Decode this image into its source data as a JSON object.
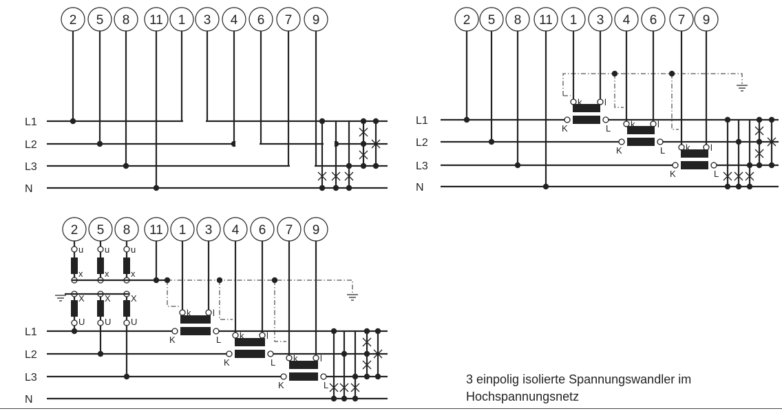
{
  "diagrams": [
    {
      "id": "top-left",
      "terminals": [
        "2",
        "5",
        "8",
        "11",
        "1",
        "3",
        "4",
        "6",
        "7",
        "9"
      ],
      "lines": [
        "L1",
        "L2",
        "L3",
        "N"
      ]
    },
    {
      "id": "top-right",
      "terminals": [
        "2",
        "5",
        "8",
        "11",
        "1",
        "3",
        "4",
        "6",
        "7",
        "9"
      ],
      "lines": [
        "L1",
        "L2",
        "L3",
        "N"
      ],
      "ct_labels": {
        "primary_in": "K",
        "primary_out": "L",
        "secondary_in": "k",
        "secondary_out": "l"
      }
    },
    {
      "id": "bottom-left",
      "terminals": [
        "2",
        "5",
        "8",
        "11",
        "1",
        "3",
        "4",
        "6",
        "7",
        "9"
      ],
      "lines": [
        "L1",
        "L2",
        "L3",
        "N"
      ],
      "ct_labels": {
        "primary_in": "K",
        "primary_out": "L",
        "secondary_in": "k",
        "secondary_out": "l"
      },
      "vt_labels": {
        "sec_top": "u",
        "sec_bottom": "x",
        "pri_top": "X",
        "pri_bottom": "U"
      }
    }
  ],
  "caption": {
    "line1": "3 einpolig isolierte Spannungswandler im",
    "line2": "Hochspannungsnetz"
  }
}
